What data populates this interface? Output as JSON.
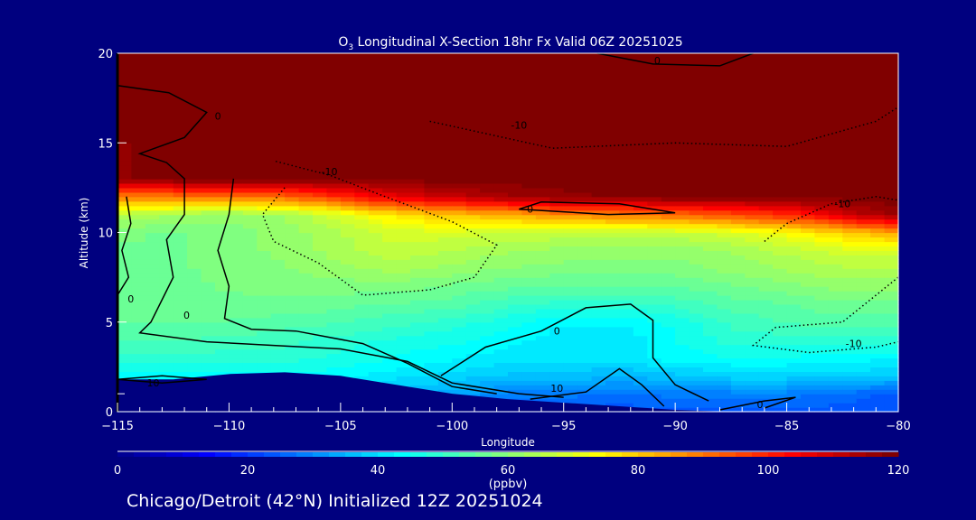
{
  "chart_data": {
    "type": "heatmap",
    "title_prefix": "O",
    "title_subscript": "3",
    "title_rest": " Longitudinal X-Section 18hr  Fx Valid 06Z 20251025",
    "xlabel": "Longitude",
    "ylabel": "Altitude (km)",
    "xlim": [
      -115,
      -80
    ],
    "ylim": [
      0,
      20
    ],
    "xticks": [
      -115,
      -110,
      -105,
      -100,
      -95,
      -90,
      -85,
      -80
    ],
    "xtick_labels": [
      "−115",
      "−110",
      "−105",
      "−100",
      "−95",
      "−90",
      "−85",
      "−80"
    ],
    "yticks": [
      0,
      5,
      10,
      15,
      20
    ],
    "ytick_labels": [
      "0",
      "5",
      "10",
      "15",
      "20"
    ],
    "units": "ppbv",
    "colorbar": {
      "range": [
        0,
        120
      ],
      "ticks": [
        0,
        20,
        40,
        60,
        80,
        100,
        120
      ],
      "tick_labels": [
        "0",
        "20",
        "40",
        "60",
        "80",
        "100",
        "120"
      ],
      "label": "(ppbv)",
      "stops": [
        [
          0,
          "#000080"
        ],
        [
          15,
          "#0000ff"
        ],
        [
          45,
          "#00ffff"
        ],
        [
          60,
          "#80ff80"
        ],
        [
          75,
          "#ffff00"
        ],
        [
          105,
          "#ff0000"
        ],
        [
          120,
          "#800000"
        ]
      ]
    },
    "grid_lon": [
      -115,
      -112.5,
      -110,
      -107.5,
      -105,
      -102.5,
      -100,
      -97.5,
      -95,
      -92.5,
      -90,
      -87.5,
      -85,
      -82.5,
      -80
    ],
    "grid_alt": [
      0,
      1,
      2,
      3,
      4,
      5,
      6,
      7,
      8,
      9,
      10,
      11,
      12,
      13,
      20
    ],
    "ozone_ppbv": [
      [
        25,
        25,
        25,
        25,
        25,
        25,
        25,
        25,
        25,
        25,
        25,
        25,
        25,
        25,
        25
      ],
      [
        40,
        40,
        40,
        40,
        40,
        38,
        35,
        30,
        30,
        28,
        30,
        30,
        30,
        28,
        25
      ],
      [
        45,
        45,
        45,
        45,
        45,
        42,
        40,
        38,
        38,
        36,
        38,
        40,
        40,
        40,
        38
      ],
      [
        50,
        50,
        50,
        50,
        48,
        46,
        44,
        42,
        42,
        42,
        45,
        46,
        46,
        45,
        44
      ],
      [
        54,
        54,
        53,
        52,
        50,
        48,
        47,
        45,
        42,
        42,
        46,
        50,
        50,
        50,
        50
      ],
      [
        56,
        56,
        56,
        55,
        54,
        52,
        50,
        47,
        44,
        44,
        47,
        52,
        54,
        55,
        55
      ],
      [
        58,
        58,
        58,
        58,
        57,
        56,
        55,
        52,
        50,
        50,
        52,
        55,
        56,
        58,
        58
      ],
      [
        58,
        58,
        59,
        60,
        60,
        60,
        58,
        57,
        56,
        56,
        56,
        58,
        60,
        62,
        62
      ],
      [
        58,
        58,
        60,
        61,
        63,
        65,
        63,
        61,
        60,
        60,
        60,
        62,
        64,
        66,
        66
      ],
      [
        58,
        58,
        60,
        62,
        65,
        68,
        66,
        64,
        63,
        62,
        62,
        64,
        67,
        70,
        70
      ],
      [
        60,
        58,
        60,
        62,
        66,
        70,
        70,
        68,
        68,
        67,
        68,
        70,
        74,
        80,
        86
      ],
      [
        66,
        64,
        62,
        64,
        70,
        78,
        82,
        84,
        88,
        90,
        92,
        96,
        100,
        110,
        118
      ],
      [
        90,
        90,
        90,
        92,
        100,
        108,
        112,
        116,
        118,
        119,
        120,
        120,
        120,
        120,
        120
      ],
      [
        118,
        120,
        120,
        120,
        120,
        120,
        120,
        120,
        120,
        120,
        120,
        120,
        120,
        120,
        120
      ],
      [
        120,
        120,
        120,
        120,
        120,
        120,
        120,
        120,
        120,
        120,
        120,
        120,
        120,
        120,
        120
      ]
    ],
    "terrain_km": [
      1.8,
      1.8,
      2.1,
      2.2,
      2.0,
      1.5,
      1.0,
      0.7,
      0.5,
      0.3,
      0.1,
      0,
      0,
      0,
      0
    ],
    "contours": [
      {
        "level": "0",
        "style": "solid",
        "label_at": [
          -110.5,
          16.5
        ],
        "points": [
          [
            -115,
            18.2
          ],
          [
            -112.7,
            17.8
          ],
          [
            -111,
            16.7
          ],
          [
            -112,
            15.3
          ],
          [
            -114,
            14.4
          ],
          [
            -112.8,
            13.9
          ],
          [
            -112,
            13
          ],
          [
            -112,
            11
          ],
          [
            -112.8,
            9.6
          ],
          [
            -112.5,
            7.5
          ],
          [
            -113.5,
            5
          ],
          [
            -114,
            4.4
          ],
          [
            -111,
            3.9
          ],
          [
            -108,
            3.7
          ],
          [
            -105,
            3.5
          ],
          [
            -102,
            2.8
          ],
          [
            -100,
            1.6
          ],
          [
            -97,
            1.0
          ],
          [
            -95,
            0.8
          ]
        ]
      },
      {
        "level": "0",
        "style": "solid",
        "label_at": [
          -111.9,
          5.4
        ],
        "points": [
          [
            -109.8,
            13.0
          ],
          [
            -110,
            11
          ],
          [
            -110.5,
            9
          ],
          [
            -110,
            7
          ],
          [
            -110.2,
            5.2
          ],
          [
            -109,
            4.6
          ],
          [
            -107,
            4.5
          ],
          [
            -104,
            3.8
          ],
          [
            -102,
            2.7
          ],
          [
            -100,
            1.4
          ],
          [
            -98,
            1.0
          ]
        ]
      },
      {
        "level": "0",
        "style": "solid",
        "label_at": [
          -114.4,
          6.3
        ],
        "points": [
          [
            -115,
            6.5
          ],
          [
            -114.5,
            7.5
          ],
          [
            -114.8,
            9
          ],
          [
            -114.4,
            10.5
          ],
          [
            -114.6,
            12
          ]
        ]
      },
      {
        "level": "0",
        "style": "solid",
        "label_at": [
          -90.8,
          19.6
        ],
        "points": [
          [
            -93.5,
            20
          ],
          [
            -91,
            19.4
          ],
          [
            -88,
            19.3
          ],
          [
            -86.5,
            20
          ]
        ]
      },
      {
        "level": "0",
        "style": "solid",
        "label_at": [
          -95.3,
          4.5
        ],
        "points": [
          [
            -100.5,
            2.0
          ],
          [
            -98.5,
            3.6
          ],
          [
            -96,
            4.5
          ],
          [
            -94,
            5.8
          ],
          [
            -92,
            6.0
          ],
          [
            -91,
            5.1
          ],
          [
            -91,
            3
          ],
          [
            -90,
            1.5
          ],
          [
            -88.5,
            0.6
          ]
        ]
      },
      {
        "level": "0",
        "style": "solid",
        "label_at": [
          -86.2,
          0.4
        ],
        "points": [
          [
            -88,
            0.1
          ],
          [
            -86,
            0.6
          ],
          [
            -84.6,
            0.8
          ],
          [
            -86,
            0.2
          ]
        ]
      },
      {
        "level": "10",
        "style": "solid",
        "label_at": [
          -95.3,
          1.3
        ],
        "points": [
          [
            -96.5,
            0.7
          ],
          [
            -94,
            1.1
          ],
          [
            -92.5,
            2.4
          ],
          [
            -91.5,
            1.5
          ],
          [
            -90.5,
            0.3
          ]
        ]
      },
      {
        "level": "10",
        "style": "solid",
        "label_at": [
          -113.4,
          1.6
        ],
        "points": [
          [
            -115,
            1.8
          ],
          [
            -113,
            2.0
          ],
          [
            -111,
            1.8
          ],
          [
            -113,
            1.6
          ],
          [
            -115,
            1.8
          ]
        ]
      },
      {
        "level": "0",
        "style": "solid",
        "label_at": [
          -96.5,
          11.3
        ],
        "points": [
          [
            -97,
            11.3
          ],
          [
            -93,
            11.0
          ],
          [
            -90,
            11.1
          ],
          [
            -92.5,
            11.6
          ],
          [
            -96,
            11.7
          ],
          [
            -97,
            11.3
          ]
        ]
      },
      {
        "level": "-10",
        "style": "dotted",
        "label_at": [
          -105.5,
          13.4
        ],
        "points": [
          [
            -107.5,
            12.5
          ],
          [
            -108.5,
            11
          ],
          [
            -108,
            9.5
          ],
          [
            -106,
            8.3
          ],
          [
            -104,
            6.5
          ],
          [
            -101,
            6.8
          ],
          [
            -99,
            7.5
          ],
          [
            -98,
            9.3
          ],
          [
            -100,
            10.6
          ],
          [
            -103,
            12
          ],
          [
            -105.5,
            13.2
          ],
          [
            -108,
            14
          ]
        ]
      },
      {
        "level": "-10",
        "style": "dotted",
        "label_at": [
          -82.5,
          11.6
        ],
        "points": [
          [
            -86,
            9.5
          ],
          [
            -85,
            10.5
          ],
          [
            -83,
            11.6
          ],
          [
            -81,
            12
          ],
          [
            -80,
            11.8
          ]
        ]
      },
      {
        "level": "-10",
        "style": "dotted",
        "label_at": [
          -82,
          3.8
        ],
        "points": [
          [
            -80,
            7.5
          ],
          [
            -81,
            6.5
          ],
          [
            -82.5,
            5
          ],
          [
            -85.5,
            4.7
          ],
          [
            -86.5,
            3.7
          ],
          [
            -84,
            3.3
          ],
          [
            -81,
            3.6
          ],
          [
            -80,
            3.9
          ]
        ]
      },
      {
        "level": "-10",
        "style": "dotted",
        "label_at": [
          -97,
          16
        ],
        "points": [
          [
            -101,
            16.2
          ],
          [
            -95.5,
            14.7
          ],
          [
            -90,
            15
          ],
          [
            -85,
            14.8
          ],
          [
            -81,
            16.2
          ],
          [
            -80,
            17
          ]
        ]
      }
    ],
    "legend": "bottom"
  },
  "footer": "Chicago/Detroit (42°N) Initialized 12Z 20251024"
}
